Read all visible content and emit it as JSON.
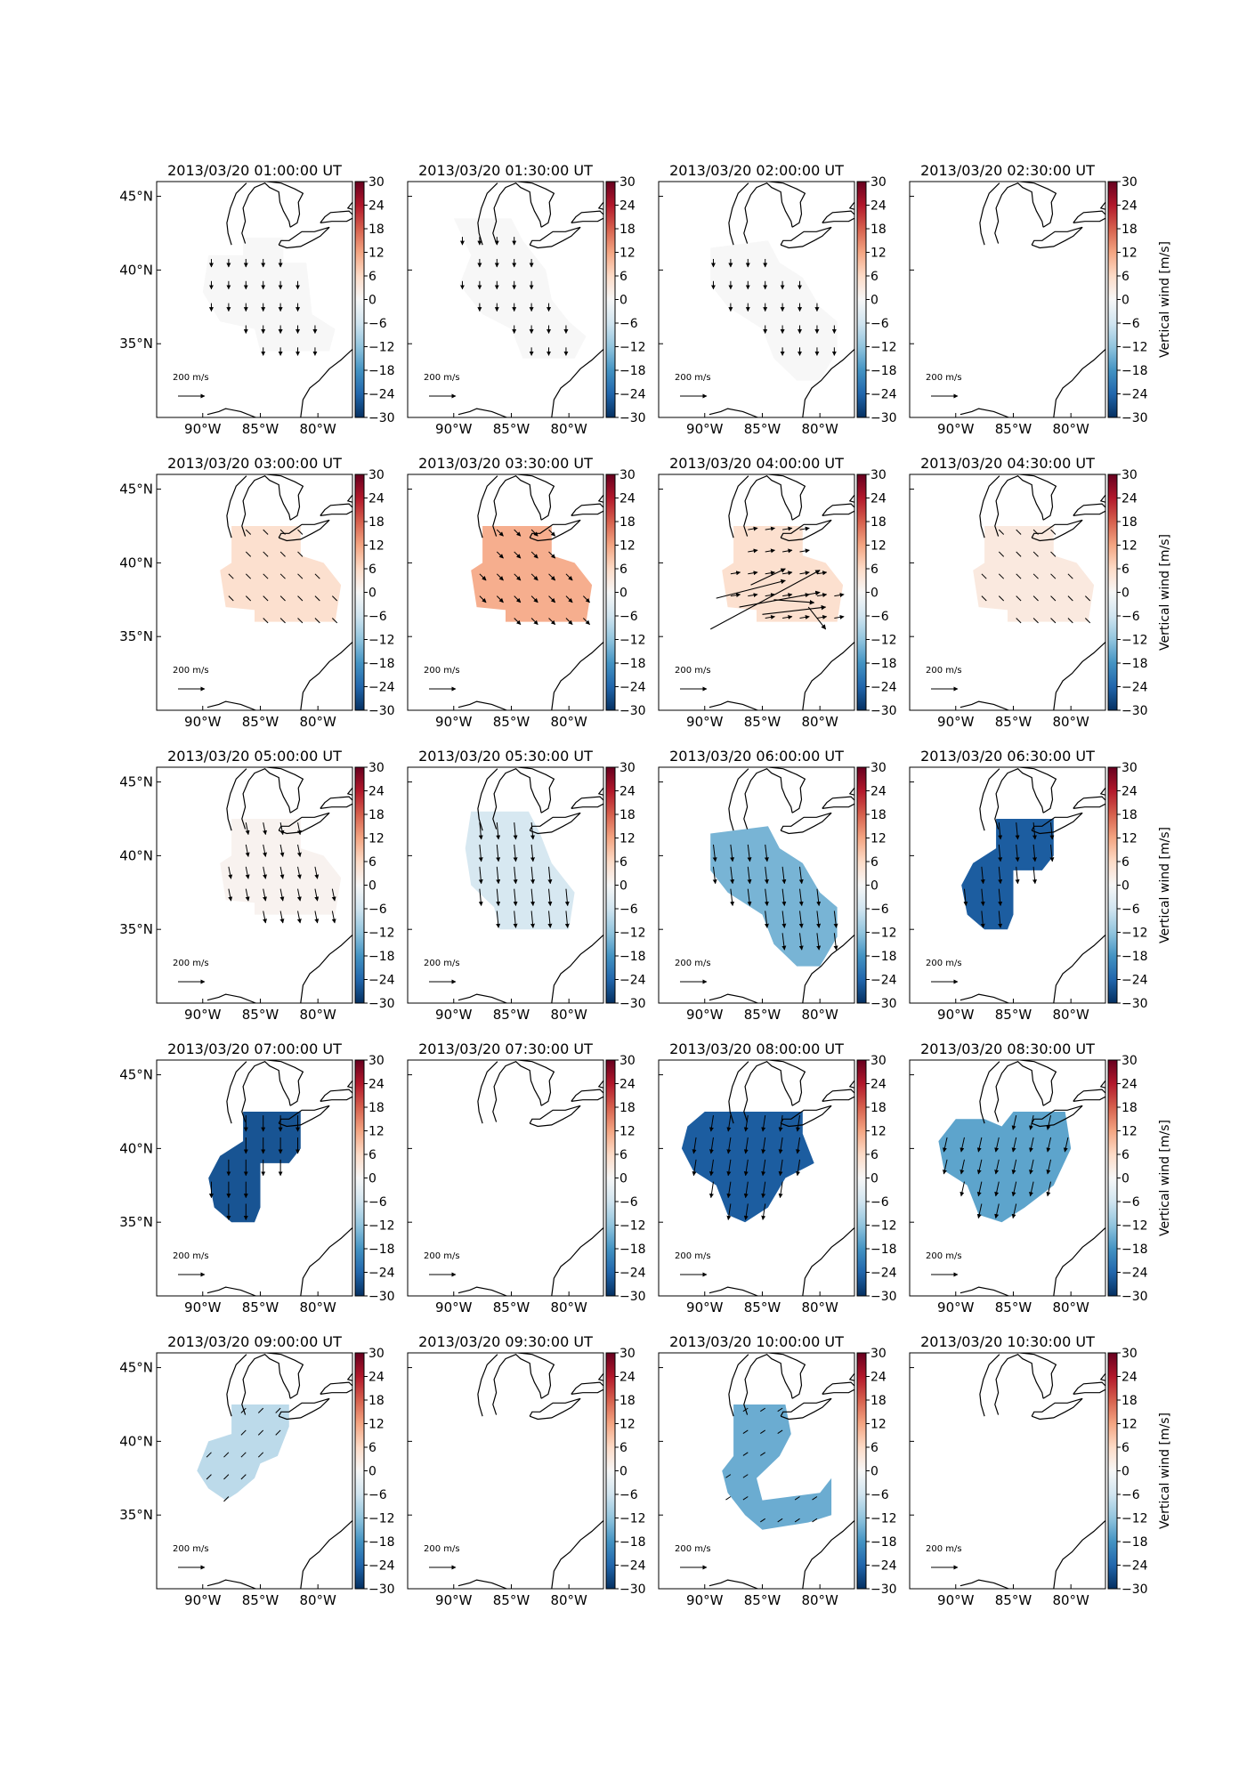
{
  "chart_data": {
    "type": "heatmap",
    "panel_titles": [
      "2013/03/20 01:00:00 UT",
      "2013/03/20 01:30:00 UT",
      "2013/03/20 02:00:00 UT",
      "2013/03/20 02:30:00 UT",
      "2013/03/20 03:00:00 UT",
      "2013/03/20 03:30:00 UT",
      "2013/03/20 04:00:00 UT",
      "2013/03/20 04:30:00 UT",
      "2013/03/20 05:00:00 UT",
      "2013/03/20 05:30:00 UT",
      "2013/03/20 06:00:00 UT",
      "2013/03/20 06:30:00 UT",
      "2013/03/20 07:00:00 UT",
      "2013/03/20 07:30:00 UT",
      "2013/03/20 08:00:00 UT",
      "2013/03/20 08:30:00 UT",
      "2013/03/20 09:00:00 UT",
      "2013/03/20 09:30:00 UT",
      "2013/03/20 10:00:00 UT",
      "2013/03/20 10:30:00 UT"
    ],
    "lon_range": [
      -94,
      -77
    ],
    "lat_range": [
      30,
      46
    ],
    "x_ticks": [
      "90°W",
      "85°W",
      "80°W"
    ],
    "y_ticks": [
      "45°N",
      "40°N",
      "35°N"
    ],
    "colorbar": {
      "label": "Vertical wind [m/s]",
      "ticks": [
        "30",
        "24",
        "18",
        "12",
        "6",
        "0",
        "−6",
        "−12",
        "−18",
        "−24",
        "−30"
      ],
      "range": [
        -30,
        30
      ],
      "colormap": "RdBu_r"
    },
    "reference_vector": {
      "label": "200 m/s",
      "value": 200
    },
    "vertical_wind_values": [
      0,
      0,
      0,
      null,
      5,
      11,
      5,
      3,
      1,
      -5,
      -14,
      -25,
      -26,
      null,
      -25,
      -16,
      -8,
      null,
      -15,
      null
    ],
    "wind_vector_lon_lat": [
      [
        0,
        -1
      ],
      [
        0,
        -1
      ],
      [
        0,
        -1
      ],
      null,
      [
        0.6,
        -0.6
      ],
      [
        0.8,
        -0.8
      ],
      [
        1.2,
        0.2
      ],
      [
        0.6,
        -0.6
      ],
      [
        0.3,
        -1.5
      ],
      [
        0.2,
        -2.1
      ],
      [
        0.25,
        -2.1
      ],
      [
        0.2,
        -2.1
      ],
      [
        0,
        -2.0
      ],
      null,
      [
        -0.3,
        -2.0
      ],
      [
        -0.4,
        -1.8
      ],
      [
        -0.6,
        -0.6
      ],
      null,
      [
        -0.6,
        -0.4
      ],
      null
    ]
  }
}
